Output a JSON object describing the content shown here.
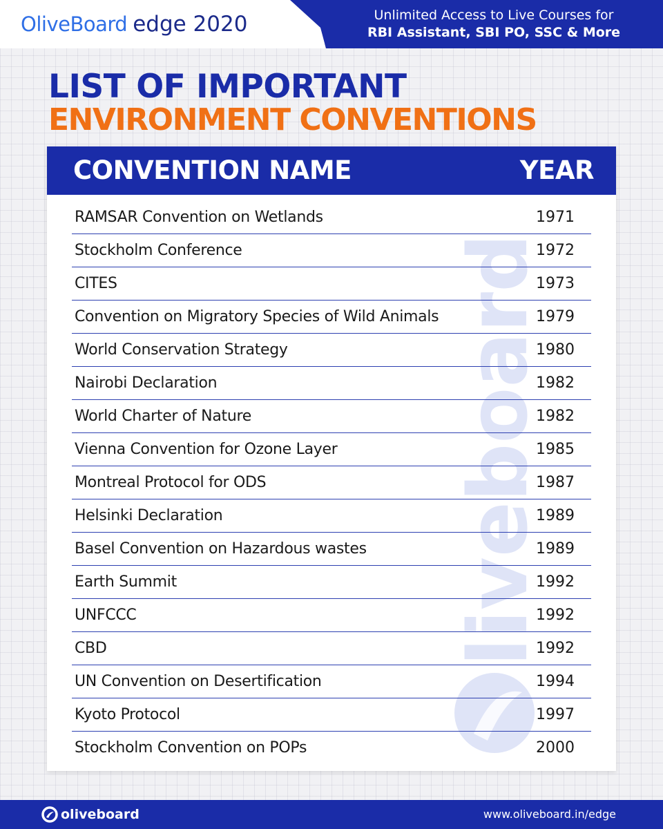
{
  "banner": {
    "brand_name": "OliveBoard",
    "brand_edge": "edge 2020",
    "tagline_line1": "Unlimited Access to Live Courses for",
    "tagline_line2": "RBI Assistant, SBI PO, SSC & More"
  },
  "title": {
    "line1": "LIST OF IMPORTANT",
    "line2": "ENVIRONMENT CONVENTIONS"
  },
  "table": {
    "columns": [
      "CONVENTION NAME",
      "YEAR"
    ],
    "rows": [
      {
        "name": "RAMSAR Convention on Wetlands",
        "year": "1971"
      },
      {
        "name": "Stockholm Conference",
        "year": "1972"
      },
      {
        "name": "CITES",
        "year": "1973"
      },
      {
        "name": "Convention on Migratory Species of Wild Animals",
        "year": "1979"
      },
      {
        "name": "World Conservation Strategy",
        "year": "1980"
      },
      {
        "name": "Nairobi Declaration",
        "year": "1982"
      },
      {
        "name": "World Charter of Nature",
        "year": "1982"
      },
      {
        "name": "Vienna Convention for Ozone Layer",
        "year": "1985"
      },
      {
        "name": "Montreal Protocol for ODS",
        "year": "1987"
      },
      {
        "name": "Helsinki Declaration",
        "year": "1989"
      },
      {
        "name": "Basel Convention on Hazardous wastes",
        "year": "1989"
      },
      {
        "name": "Earth Summit",
        "year": "1992"
      },
      {
        "name": "UNFCCC",
        "year": "1992"
      },
      {
        "name": "CBD",
        "year": "1992"
      },
      {
        "name": "UN Convention on Desertification",
        "year": "1994"
      },
      {
        "name": "Kyoto Protocol",
        "year": "1997"
      },
      {
        "name": "Stockholm Convention on POPs",
        "year": "2000"
      }
    ]
  },
  "watermark": {
    "text": "Oliveboard"
  },
  "footer": {
    "brand": "oliveboard",
    "url": "www.oliveboard.in/edge"
  },
  "colors": {
    "primary_blue": "#1a2ca8",
    "brand_light_blue": "#2f6fe6",
    "accent_orange": "#f07015"
  }
}
